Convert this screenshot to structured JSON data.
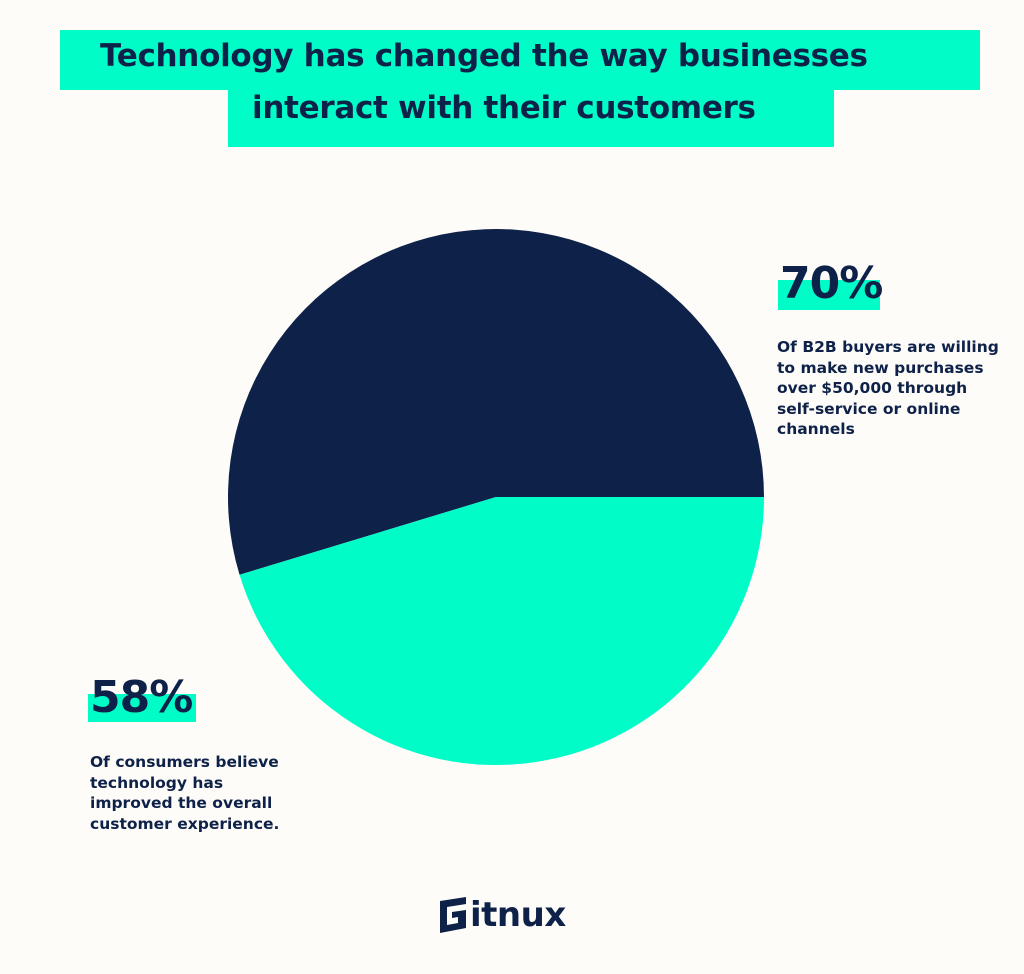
{
  "chart_data": {
    "type": "pie",
    "title": [
      "Technology has changed the way businesses",
      "interact with their customers"
    ],
    "slices": [
      {
        "label": "70%",
        "value": 70,
        "description": "Of B2B buyers are willing to make new purchases over $50,000 through self-service or online channels",
        "color": "#0e2148"
      },
      {
        "label": "58%",
        "value": 58,
        "description": "Of consumers believe technology has improved the overall customer experience.",
        "color": "#00fdc8"
      }
    ]
  },
  "colors": {
    "background": "#fdfcf8",
    "accent": "#00fdc8",
    "navy": "#0e2148"
  },
  "logo": {
    "text": "Gitnux"
  },
  "desc_lines": {
    "b2b": [
      "Of B2B buyers are willing",
      "to make new purchases",
      "over $50,000 through",
      "self-service or online",
      "channels"
    ],
    "consumers": [
      "Of consumers believe",
      "technology has",
      "improved the overall",
      "customer experience."
    ]
  }
}
